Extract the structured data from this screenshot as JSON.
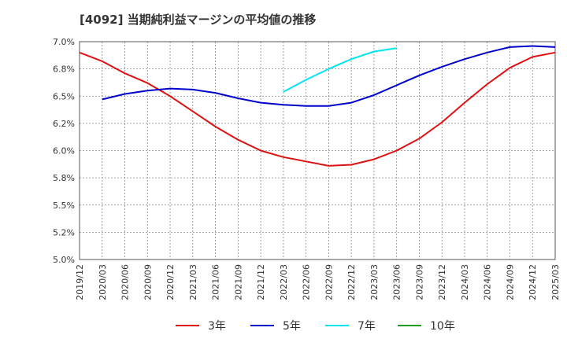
{
  "title": "[4092]  当期純利益マージンの平均値の推移",
  "chart_data": {
    "type": "line",
    "title": "[4092]  当期純利益マージンの平均値の推移",
    "xlabel": "",
    "ylabel": "",
    "ylim": [
      5.0,
      7.0
    ],
    "y_ticks": [
      "7.0%",
      "6.8%",
      "6.5%",
      "6.2%",
      "6.0%",
      "5.8%",
      "5.5%",
      "5.2%",
      "5.0%"
    ],
    "x_ticks": [
      "2019/12",
      "2020/03",
      "2020/06",
      "2020/09",
      "2020/12",
      "2021/03",
      "2021/06",
      "2021/09",
      "2021/12",
      "2022/03",
      "2022/06",
      "2022/09",
      "2022/12",
      "2023/03",
      "2023/06",
      "2023/09",
      "2023/12",
      "2024/03",
      "2024/06",
      "2024/09",
      "2024/12",
      "2025/03"
    ],
    "grid": true,
    "legend_position": "bottom",
    "series": [
      {
        "name": "3年",
        "color": "#dd1111",
        "points": [
          [
            "2019/12",
            6.9
          ],
          [
            "2020/03",
            6.82
          ],
          [
            "2020/06",
            6.71
          ],
          [
            "2020/09",
            6.62
          ],
          [
            "2020/12",
            6.5
          ],
          [
            "2021/03",
            6.36
          ],
          [
            "2021/06",
            6.22
          ],
          [
            "2021/09",
            6.1
          ],
          [
            "2021/12",
            6.0
          ],
          [
            "2022/03",
            5.94
          ],
          [
            "2022/06",
            5.9
          ],
          [
            "2022/09",
            5.86
          ],
          [
            "2022/12",
            5.87
          ],
          [
            "2023/03",
            5.92
          ],
          [
            "2023/06",
            6.0
          ],
          [
            "2023/09",
            6.11
          ],
          [
            "2023/12",
            6.26
          ],
          [
            "2024/03",
            6.44
          ],
          [
            "2024/06",
            6.61
          ],
          [
            "2024/09",
            6.76
          ],
          [
            "2024/12",
            6.86
          ],
          [
            "2025/03",
            6.9
          ]
        ]
      },
      {
        "name": "5年",
        "color": "#0000cc",
        "points": [
          [
            "2020/03",
            6.47
          ],
          [
            "2020/06",
            6.52
          ],
          [
            "2020/09",
            6.55
          ],
          [
            "2020/12",
            6.57
          ],
          [
            "2021/03",
            6.56
          ],
          [
            "2021/06",
            6.53
          ],
          [
            "2021/09",
            6.48
          ],
          [
            "2021/12",
            6.44
          ],
          [
            "2022/03",
            6.42
          ],
          [
            "2022/06",
            6.41
          ],
          [
            "2022/09",
            6.41
          ],
          [
            "2022/12",
            6.44
          ],
          [
            "2023/03",
            6.51
          ],
          [
            "2023/06",
            6.6
          ],
          [
            "2023/09",
            6.69
          ],
          [
            "2023/12",
            6.77
          ],
          [
            "2024/03",
            6.84
          ],
          [
            "2024/06",
            6.9
          ],
          [
            "2024/09",
            6.95
          ],
          [
            "2024/12",
            6.96
          ],
          [
            "2025/03",
            6.95
          ]
        ]
      },
      {
        "name": "7年",
        "color": "#00e5ee",
        "points": [
          [
            "2022/03",
            6.54
          ],
          [
            "2022/06",
            6.65
          ],
          [
            "2022/09",
            6.75
          ],
          [
            "2022/12",
            6.84
          ],
          [
            "2023/03",
            6.91
          ],
          [
            "2023/06",
            6.94
          ]
        ]
      },
      {
        "name": "10年",
        "color": "#229922",
        "points": []
      }
    ]
  }
}
